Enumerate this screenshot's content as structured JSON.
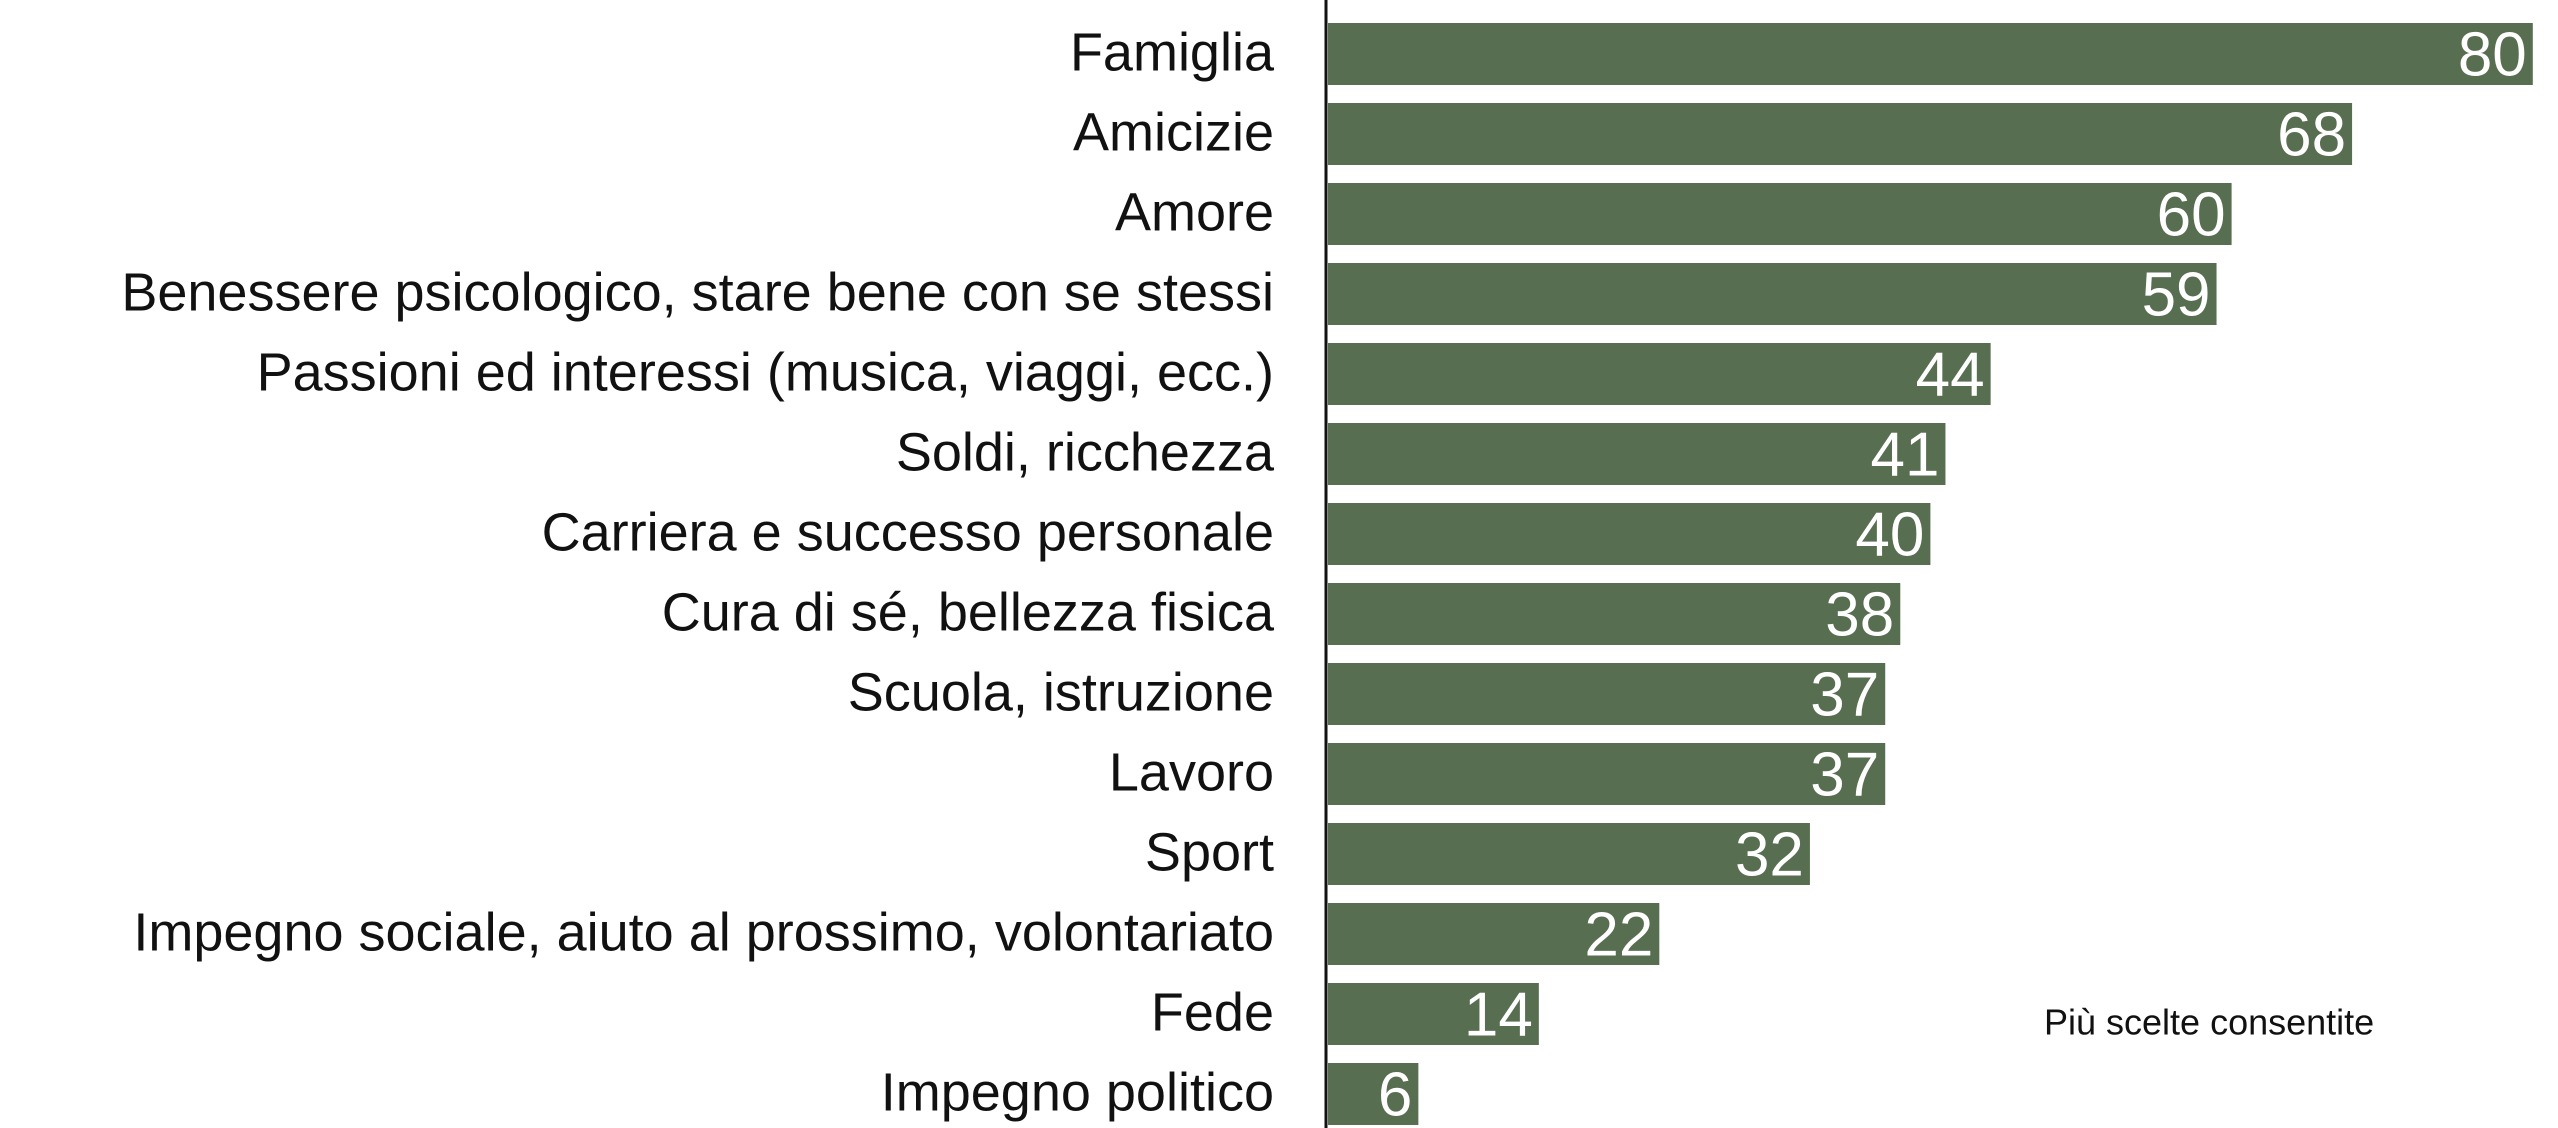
{
  "chart_data": {
    "type": "bar",
    "orientation": "horizontal",
    "categories": [
      "Famiglia",
      "Amicizie",
      "Amore",
      "Benessere psicologico, stare bene con se stessi",
      "Passioni ed interessi (musica, viaggi, ecc.)",
      "Soldi, ricchezza",
      "Carriera e successo personale",
      "Cura di sé, bellezza fisica",
      "Scuola, istruzione",
      "Lavoro",
      "Sport",
      "Impegno sociale, aiuto al prossimo, volontariato",
      "Fede",
      "Impegno politico"
    ],
    "values": [
      80,
      68,
      60,
      59,
      44,
      41,
      40,
      38,
      37,
      37,
      32,
      22,
      14,
      6
    ],
    "color": "#586e50",
    "annotation": "Più scelte consentite"
  }
}
